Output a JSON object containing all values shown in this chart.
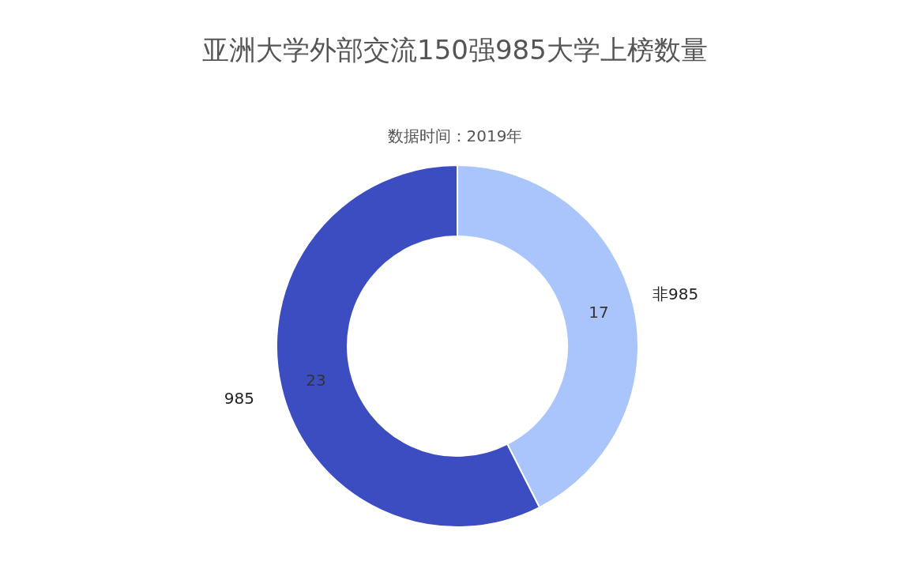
{
  "chart_data": {
    "type": "donut",
    "title": "亚洲大学外部交流150强985大学上榜数量",
    "subtitle": "数据时间：2019年",
    "categories": [
      "非985",
      "985"
    ],
    "values": [
      17,
      23
    ],
    "colors": [
      "#aac4fc",
      "#3b4dc0"
    ],
    "data_labels": true
  }
}
